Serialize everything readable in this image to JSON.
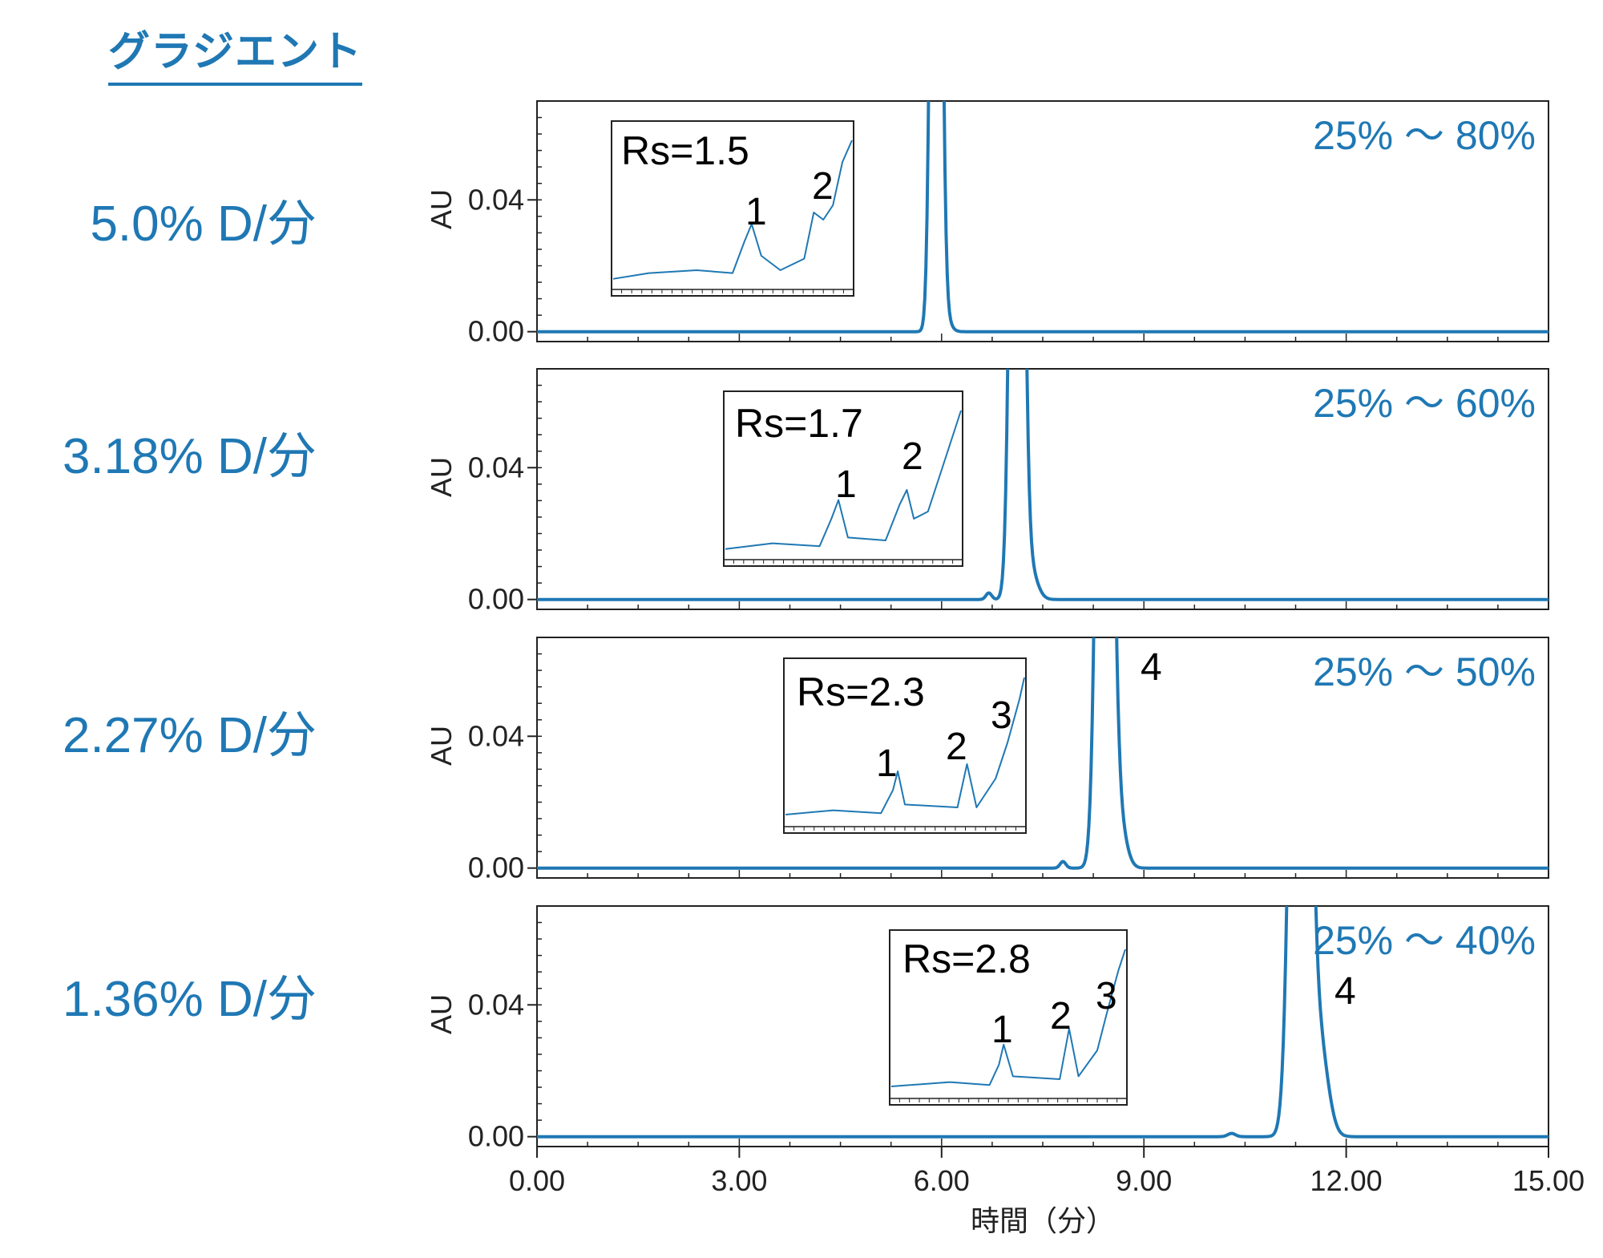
{
  "title": "グラジエント",
  "chart_data": {
    "type": "line",
    "xlabel": "時間（分）",
    "xlim": [
      0,
      15
    ],
    "x_ticks": [
      "0.00",
      "3.00",
      "6.00",
      "9.00",
      "12.00",
      "15.00"
    ],
    "y_ticks": [
      "0.00",
      "0.04"
    ],
    "ylim": [
      -0.003,
      0.07
    ],
    "panels": [
      {
        "rate_label": "5.0% D/分",
        "gradient_range": "25% ～ 80%",
        "ylabel": "AU",
        "rs_label": "Rs=1.5",
        "inset_peak_labels": [
          "1",
          "2"
        ],
        "main_peak_label": "",
        "peaks": [
          {
            "t": 5.92,
            "h": 0.35,
            "w": 0.09
          },
          {
            "t": 6.02,
            "h": 0.006,
            "w": 0.12
          }
        ],
        "inset": [
          [
            0,
            0.04
          ],
          [
            0.15,
            0.08
          ],
          [
            0.35,
            0.1
          ],
          [
            0.5,
            0.08
          ],
          [
            0.55,
            0.3
          ],
          [
            0.58,
            0.42
          ],
          [
            0.62,
            0.2
          ],
          [
            0.7,
            0.1
          ],
          [
            0.8,
            0.18
          ],
          [
            0.84,
            0.5
          ],
          [
            0.88,
            0.45
          ],
          [
            0.92,
            0.55
          ],
          [
            0.96,
            0.85
          ],
          [
            1,
            1.0
          ]
        ]
      },
      {
        "rate_label": "3.18% D/分",
        "gradient_range": "25% ～ 60%",
        "ylabel": "AU",
        "rs_label": "Rs=1.7",
        "inset_peak_labels": [
          "1",
          "2"
        ],
        "main_peak_label": "",
        "peaks": [
          {
            "t": 7.12,
            "h": 0.35,
            "w": 0.11
          },
          {
            "t": 7.3,
            "h": 0.01,
            "w": 0.15
          },
          {
            "t": 6.7,
            "h": 0.002,
            "w": 0.06
          }
        ],
        "inset": [
          [
            0,
            0.04
          ],
          [
            0.2,
            0.08
          ],
          [
            0.4,
            0.06
          ],
          [
            0.45,
            0.25
          ],
          [
            0.48,
            0.38
          ],
          [
            0.52,
            0.12
          ],
          [
            0.68,
            0.1
          ],
          [
            0.74,
            0.35
          ],
          [
            0.77,
            0.45
          ],
          [
            0.8,
            0.25
          ],
          [
            0.86,
            0.3
          ],
          [
            0.92,
            0.6
          ],
          [
            0.97,
            0.85
          ],
          [
            1,
            1.0
          ]
        ]
      },
      {
        "rate_label": "2.27% D/分",
        "gradient_range": "25% ～ 50%",
        "ylabel": "AU",
        "rs_label": "Rs=2.3",
        "inset_peak_labels": [
          "1",
          "2",
          "3"
        ],
        "main_peak_label": "4",
        "peaks": [
          {
            "t": 8.42,
            "h": 0.35,
            "w": 0.13
          },
          {
            "t": 8.62,
            "h": 0.015,
            "w": 0.15
          },
          {
            "t": 7.8,
            "h": 0.002,
            "w": 0.06
          }
        ],
        "inset": [
          [
            0,
            0.05
          ],
          [
            0.2,
            0.08
          ],
          [
            0.4,
            0.06
          ],
          [
            0.45,
            0.22
          ],
          [
            0.47,
            0.35
          ],
          [
            0.5,
            0.12
          ],
          [
            0.72,
            0.1
          ],
          [
            0.76,
            0.4
          ],
          [
            0.8,
            0.1
          ],
          [
            0.88,
            0.3
          ],
          [
            0.93,
            0.55
          ],
          [
            0.98,
            0.85
          ],
          [
            1,
            1.0
          ]
        ]
      },
      {
        "rate_label": "1.36% D/分",
        "gradient_range": "25% ～ 40%",
        "ylabel": "AU",
        "rs_label": "Rs=2.8",
        "inset_peak_labels": [
          "1",
          "2",
          "3"
        ],
        "main_peak_label": "4",
        "peaks": [
          {
            "t": 11.32,
            "h": 0.35,
            "w": 0.16
          },
          {
            "t": 11.6,
            "h": 0.028,
            "w": 0.18
          },
          {
            "t": 10.3,
            "h": 0.001,
            "w": 0.08
          }
        ],
        "inset": [
          [
            0,
            0.05
          ],
          [
            0.25,
            0.08
          ],
          [
            0.42,
            0.06
          ],
          [
            0.46,
            0.2
          ],
          [
            0.48,
            0.34
          ],
          [
            0.52,
            0.12
          ],
          [
            0.72,
            0.1
          ],
          [
            0.76,
            0.45
          ],
          [
            0.8,
            0.12
          ],
          [
            0.88,
            0.3
          ],
          [
            0.92,
            0.55
          ],
          [
            0.97,
            0.85
          ],
          [
            1,
            1.0
          ]
        ]
      }
    ],
    "colors": {
      "trace": "#1f78b4",
      "axis": "#222222",
      "label": "#1f78b4"
    }
  }
}
